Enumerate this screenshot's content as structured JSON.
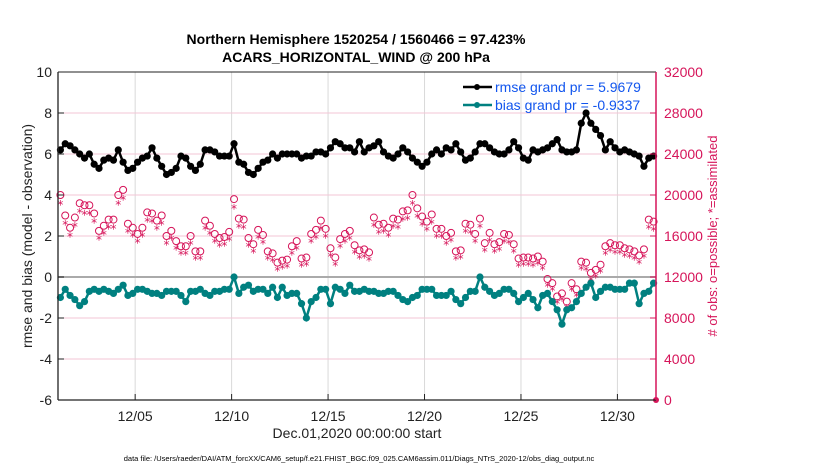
{
  "chart_data": {
    "type": "line",
    "title": "Northern Hemisphere 1520254 / 1560466 = 97.423%",
    "subtitle": "ACARS_HORIZONTAL_WIND @ 200 hPa",
    "xlabel": "Dec.01,2020 00:00:00 start",
    "ylabel": "rmse and bias (model - observation)",
    "ylabel_right": "# of obs: o=possible; *=assimilated",
    "x_range_days": [
      1,
      32
    ],
    "ylim": [
      -6,
      10
    ],
    "ylim_right": [
      0,
      32000
    ],
    "x_ticks": [
      {
        "day": 5,
        "label": "12/05"
      },
      {
        "day": 10,
        "label": "12/10"
      },
      {
        "day": 15,
        "label": "12/15"
      },
      {
        "day": 20,
        "label": "12/20"
      },
      {
        "day": 25,
        "label": "12/25"
      },
      {
        "day": 30,
        "label": "12/30"
      }
    ],
    "y_ticks": [
      "10",
      "8",
      "6",
      "4",
      "2",
      "0",
      "-2",
      "-4",
      "-6"
    ],
    "y_ticks_right": [
      "32000",
      "28000",
      "24000",
      "20000",
      "16000",
      "12000",
      "8000",
      "4000",
      "0"
    ],
    "grid": true,
    "legend_position": "top-right",
    "legend": [
      {
        "label": "rmse grand pr = 5.9679",
        "color": "#000000"
      },
      {
        "label": "bias grand pr = -0.9337",
        "color": "#008080"
      }
    ],
    "time_step_days": 0.25,
    "start_day": 1.0,
    "series": [
      {
        "name": "rmse",
        "color": "#000000",
        "values": [
          6.2,
          6.5,
          6.4,
          6.2,
          6.0,
          5.8,
          6.0,
          5.5,
          5.3,
          5.7,
          5.8,
          5.7,
          6.2,
          5.6,
          5.2,
          5.3,
          5.6,
          5.8,
          5.9,
          6.3,
          5.8,
          5.4,
          5.0,
          5.1,
          5.3,
          5.9,
          5.8,
          5.4,
          5.2,
          5.5,
          6.2,
          6.2,
          6.1,
          5.9,
          5.9,
          5.9,
          6.5,
          5.6,
          5.5,
          5.1,
          5.0,
          5.3,
          5.6,
          5.7,
          6.0,
          5.8,
          6.0,
          6.0,
          6.0,
          6.0,
          5.8,
          5.9,
          5.9,
          6.1,
          6.1,
          6.0,
          6.3,
          6.6,
          6.5,
          6.3,
          6.3,
          6.1,
          6.6,
          6.1,
          6.3,
          6.4,
          6.6,
          6.1,
          5.9,
          5.8,
          6.0,
          6.3,
          6.1,
          5.8,
          5.6,
          5.4,
          5.6,
          6.0,
          6.2,
          6.0,
          6.3,
          6.2,
          6.5,
          6.1,
          5.7,
          5.8,
          6.1,
          6.5,
          6.5,
          6.3,
          6.1,
          6.0,
          6.0,
          6.2,
          6.6,
          6.3,
          5.8,
          5.7,
          6.2,
          6.1,
          6.2,
          6.3,
          6.5,
          6.7,
          6.2,
          6.1,
          6.1,
          6.2,
          7.5,
          8.0,
          7.5,
          7.2,
          6.9,
          6.2,
          6.6,
          6.3,
          6.1,
          6.2,
          6.1,
          6.0,
          5.9,
          5.4,
          5.8,
          5.9,
          6.0,
          6.6,
          6.1,
          5.8,
          5.9,
          5.8,
          5.2,
          5.1,
          5.2,
          5.5,
          6.1,
          6.1,
          6.4,
          6.3,
          6.5,
          6.3,
          6.6,
          6.7,
          7.0,
          6.4
        ]
      },
      {
        "name": "bias",
        "color": "#008080",
        "values": [
          -1.0,
          -0.6,
          -0.9,
          -1.1,
          -1.4,
          -1.2,
          -0.7,
          -0.6,
          -0.7,
          -0.6,
          -0.7,
          -0.8,
          -0.6,
          -0.4,
          -0.9,
          -0.8,
          -0.6,
          -0.6,
          -0.7,
          -0.8,
          -0.8,
          -0.9,
          -0.7,
          -0.7,
          -0.7,
          -0.9,
          -1.2,
          -0.7,
          -0.7,
          -0.6,
          -0.8,
          -0.9,
          -0.7,
          -0.7,
          -0.6,
          -0.6,
          0.0,
          -0.8,
          -0.5,
          -0.4,
          -0.7,
          -0.6,
          -0.6,
          -0.8,
          -0.5,
          -1.0,
          -0.5,
          -0.9,
          -0.8,
          -0.8,
          -1.3,
          -2.0,
          -1.2,
          -1.0,
          -0.6,
          -0.6,
          -1.3,
          -0.5,
          -0.6,
          -0.8,
          -0.4,
          -0.7,
          -0.7,
          -0.6,
          -0.7,
          -0.7,
          -0.8,
          -0.8,
          -0.7,
          -0.7,
          -0.9,
          -1.1,
          -1.2,
          -1.0,
          -0.9,
          -0.6,
          -0.6,
          -0.6,
          -0.9,
          -0.9,
          -0.9,
          -0.7,
          -1.1,
          -1.3,
          -1.0,
          -0.7,
          -0.7,
          0.0,
          -0.5,
          -0.7,
          -0.9,
          -0.8,
          -0.6,
          -0.6,
          -0.8,
          -1.2,
          -1.0,
          -0.8,
          -1.1,
          -1.5,
          -0.9,
          -0.8,
          -1.2,
          -1.6,
          -2.3,
          -1.6,
          -1.5,
          -1.2,
          -0.8,
          -0.5,
          -0.3,
          -1.0,
          -0.7,
          -0.5,
          -0.5,
          -0.6,
          -0.6,
          -0.6,
          -0.3,
          -0.3,
          -1.3,
          -0.8,
          -0.7,
          -0.3,
          -0.9,
          -0.6,
          -0.6,
          -0.6,
          -1.1,
          -0.6,
          -0.8,
          -0.7,
          -1.1,
          -0.9,
          -0.9,
          -0.8,
          -1.2,
          -1.1,
          -0.8,
          -1.1,
          -1.2,
          -0.9,
          -2.0,
          -0.8
        ]
      }
    ],
    "obs_possible": [
      20000,
      18000,
      16800,
      17800,
      19200,
      19000,
      19000,
      18200,
      16500,
      17000,
      17600,
      17600,
      20000,
      20500,
      17200,
      16800,
      16200,
      16800,
      18300,
      18200,
      17500,
      18000,
      16000,
      16500,
      15500,
      15000,
      15000,
      16000,
      14500,
      14500,
      17500,
      17000,
      16200,
      15800,
      15900,
      16400,
      19600,
      17700,
      17600,
      15800,
      15200,
      16600,
      16100,
      14500,
      14300,
      13400,
      13600,
      13700,
      15000,
      15500,
      13800,
      13900,
      16200,
      16600,
      17500,
      16700,
      14800,
      13900,
      15700,
      16200,
      16500,
      15100,
      14600,
      14700,
      14400,
      17800,
      17100,
      17200,
      16800,
      17700,
      17600,
      18400,
      18500,
      20000,
      18700,
      17900,
      17400,
      18100,
      16700,
      16700,
      16000,
      16300,
      14500,
      14600,
      17200,
      17100,
      16200,
      17700,
      15300,
      16300,
      15200,
      15400,
      16200,
      16100,
      15200,
      13800,
      13900,
      13900,
      13800,
      14000,
      13500,
      11800,
      11400,
      10100,
      10400,
      9600,
      11400,
      10800,
      13500,
      13400,
      12400,
      12700,
      13200,
      15000,
      15300,
      15100,
      15100,
      14800,
      14700,
      14500,
      14100,
      14700,
      17600,
      17400,
      15800,
      15800,
      15400,
      14700,
      14700,
      14900,
      15500,
      15000,
      14800,
      14900,
      15200,
      14700,
      14600,
      14000,
      14800,
      13700,
      13900,
      14500,
      15000,
      14000
    ]
  },
  "footer": "data file: /Users/raeder/DAI/ATM_forcXX/CAM6_setup/f.e21.FHIST_BGC.f09_025.CAM6assim.011/Diags_NTrS_2020-12/obs_diag_output.nc"
}
